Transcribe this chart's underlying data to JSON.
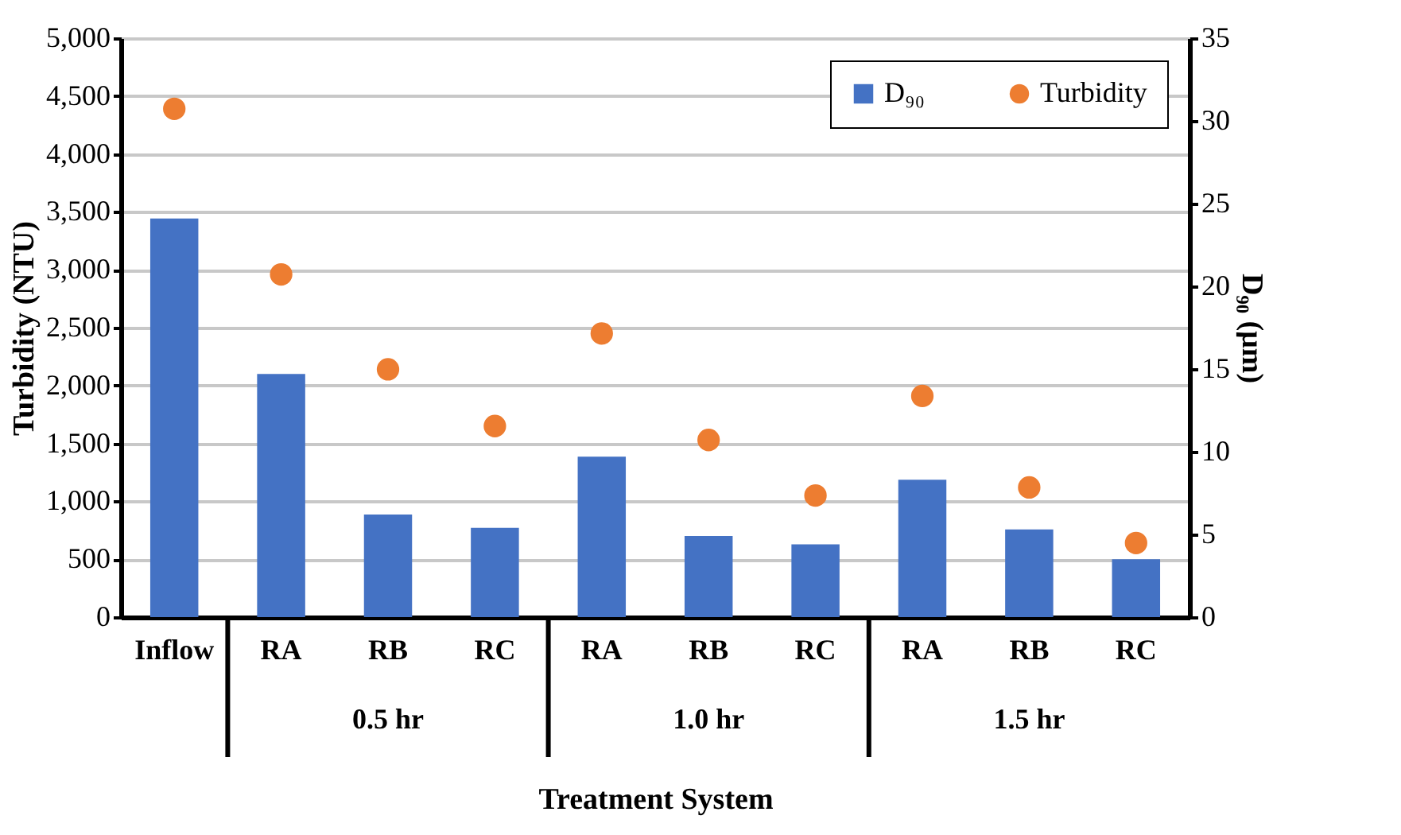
{
  "chart_data": {
    "type": "bar",
    "categories": [
      "Inflow",
      "RA",
      "RB",
      "RC",
      "RA",
      "RB",
      "RC",
      "RA",
      "RB",
      "RC"
    ],
    "series": [
      {
        "name": "D₉₀",
        "axis": "y2",
        "color": "#4472c4",
        "values": [
          24.1,
          14.7,
          6.2,
          5.4,
          9.7,
          4.9,
          4.4,
          8.3,
          5.3,
          3.5
        ]
      },
      {
        "name": "Turbidity",
        "type": "scatter",
        "color": "#ed7d31",
        "marker": "circle",
        "values": [
          4390,
          2960,
          2140,
          1650,
          2450,
          1530,
          1050,
          1910,
          1120,
          640
        ]
      }
    ],
    "xlabel": "Treatment System",
    "ylabel": "Turbidity  (NTU)",
    "y2label": "D₉₀ (μm)",
    "ylim": [
      0,
      5000
    ],
    "yticks": [
      {
        "value": 0,
        "label": "0"
      },
      {
        "value": 500,
        "label": "500"
      },
      {
        "value": 1000,
        "label": "1,000"
      },
      {
        "value": 1500,
        "label": "1,500"
      },
      {
        "value": 2000,
        "label": "2,000"
      },
      {
        "value": 2500,
        "label": "2,500"
      },
      {
        "value": 3000,
        "label": "3,000"
      },
      {
        "value": 3500,
        "label": "3,500"
      },
      {
        "value": 4000,
        "label": "4,000"
      },
      {
        "value": 4500,
        "label": "4,500"
      },
      {
        "value": 5000,
        "label": "5,000"
      }
    ],
    "y2lim": [
      0,
      35
    ],
    "y2ticks": [
      0,
      5,
      10,
      15,
      20,
      25,
      30,
      35
    ],
    "annotations": [
      "0.5 hr",
      "1.0 hr",
      "1.5 hr"
    ],
    "grid": "y",
    "legend": "top right"
  }
}
